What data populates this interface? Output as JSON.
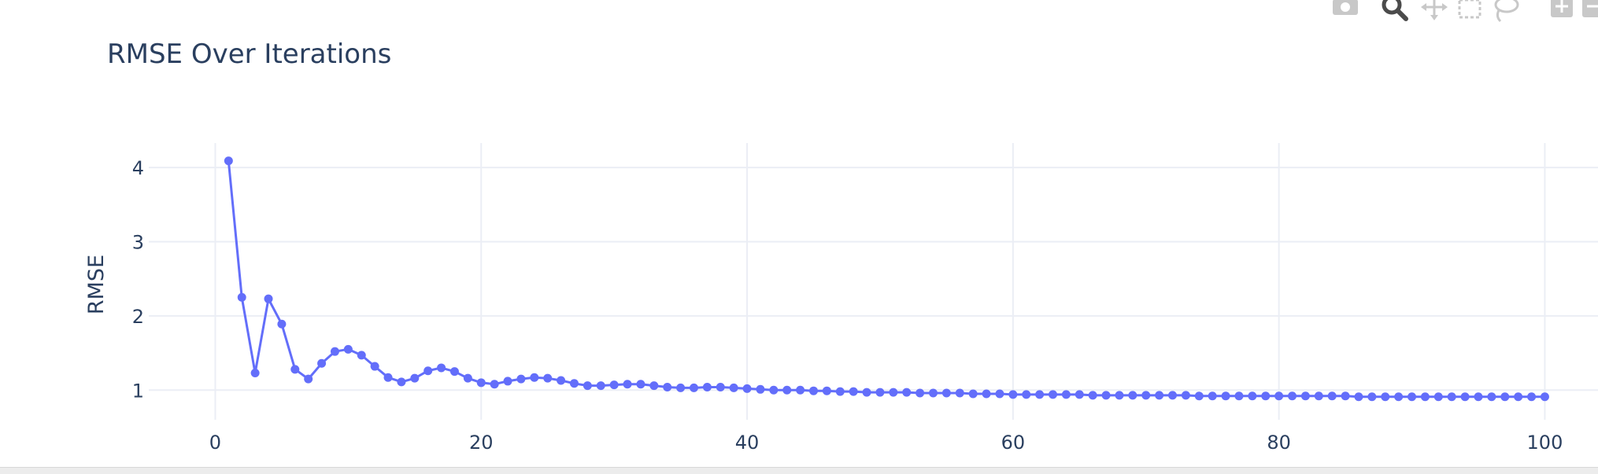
{
  "modebar": {
    "icons": [
      {
        "name": "camera-icon",
        "label": "Download plot as a png"
      },
      {
        "name": "zoom-icon",
        "label": "Zoom"
      },
      {
        "name": "pan-icon",
        "label": "Pan"
      },
      {
        "name": "box-select-icon",
        "label": "Box Select"
      },
      {
        "name": "lasso-select-icon",
        "label": "Lasso Select"
      },
      {
        "name": "zoom-in-icon",
        "label": "Zoom in"
      },
      {
        "name": "zoom-out-icon",
        "label": "Zoom out"
      }
    ],
    "active": "zoom-icon",
    "colors": {
      "icon": "#c8c8c8",
      "active": "#4b4b4b"
    }
  },
  "chart_data": {
    "type": "line",
    "title": "RMSE Over Iterations",
    "xlabel": "",
    "ylabel": "RMSE",
    "xlim": [
      -5,
      104
    ],
    "ylim": [
      0.6,
      4.33
    ],
    "xticks": [
      0,
      20,
      40,
      60,
      80,
      100
    ],
    "yticks": [
      1,
      2,
      3,
      4
    ],
    "grid": true,
    "legend": "none",
    "colors": {
      "line": "#636efa",
      "grid": "#ebeef5",
      "text": "#2a3f5f"
    },
    "series": [
      {
        "mode": "lines+markers",
        "x": [
          1,
          2,
          3,
          4,
          5,
          6,
          7,
          8,
          9,
          10,
          11,
          12,
          13,
          14,
          15,
          16,
          17,
          18,
          19,
          20,
          21,
          22,
          23,
          24,
          25,
          26,
          27,
          28,
          29,
          30,
          31,
          32,
          33,
          34,
          35,
          36,
          37,
          38,
          39,
          40,
          41,
          42,
          43,
          44,
          45,
          46,
          47,
          48,
          49,
          50,
          51,
          52,
          53,
          54,
          55,
          56,
          57,
          58,
          59,
          60,
          61,
          62,
          63,
          64,
          65,
          66,
          67,
          68,
          69,
          70,
          71,
          72,
          73,
          74,
          75,
          76,
          77,
          78,
          79,
          80,
          81,
          82,
          83,
          84,
          85,
          86,
          87,
          88,
          89,
          90,
          91,
          92,
          93,
          94,
          95,
          96,
          97,
          98,
          99,
          100
        ],
        "y": [
          4.09,
          2.25,
          1.23,
          2.23,
          1.89,
          1.28,
          1.15,
          1.36,
          1.52,
          1.55,
          1.47,
          1.32,
          1.17,
          1.11,
          1.16,
          1.26,
          1.3,
          1.25,
          1.16,
          1.1,
          1.08,
          1.12,
          1.15,
          1.17,
          1.16,
          1.13,
          1.09,
          1.06,
          1.06,
          1.07,
          1.08,
          1.08,
          1.06,
          1.04,
          1.03,
          1.03,
          1.04,
          1.04,
          1.03,
          1.02,
          1.01,
          1.0,
          1.0,
          1.0,
          0.99,
          0.99,
          0.98,
          0.98,
          0.97,
          0.97,
          0.97,
          0.97,
          0.96,
          0.96,
          0.96,
          0.96,
          0.95,
          0.95,
          0.95,
          0.94,
          0.94,
          0.94,
          0.94,
          0.94,
          0.94,
          0.93,
          0.93,
          0.93,
          0.93,
          0.93,
          0.93,
          0.93,
          0.93,
          0.92,
          0.92,
          0.92,
          0.92,
          0.92,
          0.92,
          0.92,
          0.92,
          0.92,
          0.92,
          0.92,
          0.92,
          0.91,
          0.91,
          0.91,
          0.91,
          0.91,
          0.91,
          0.91,
          0.91,
          0.91,
          0.91,
          0.91,
          0.91,
          0.91,
          0.91,
          0.91
        ]
      }
    ]
  }
}
